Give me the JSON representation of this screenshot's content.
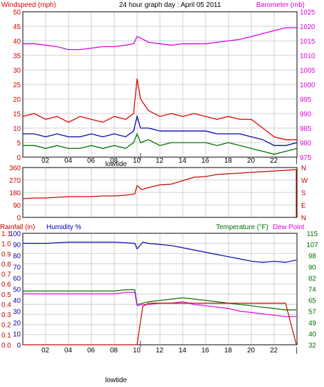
{
  "colors": {
    "wind": "#e00000",
    "wind_avg": "#0000b0",
    "wind_low": "#007000",
    "baro": "#dd00dd",
    "humidity": "#0000b0",
    "temperature": "#007000",
    "dewpoint": "#dd00dd",
    "rain": "#cc0000",
    "frame": "#000000",
    "grid": "#cfcfcf",
    "tide_marker": "#444444"
  },
  "x_ticks": [
    "02",
    "04",
    "06",
    "08",
    "10",
    "12",
    "14",
    "16",
    "18",
    "20",
    "22",
    "|"
  ],
  "tide_labels": [
    "lowtide",
    "lowtide"
  ],
  "chart_data": [
    {
      "type": "line",
      "title": "24 hour graph day : April 05 2011",
      "left_axis_label": "Windspeed (mph)",
      "right_axis_label": "Barometer (mb)",
      "left_ticks": [
        "0",
        "5",
        "10",
        "15",
        "20",
        "25",
        "30",
        "35",
        "40",
        "45",
        "50"
      ],
      "right_ticks": [
        "975",
        "980",
        "985",
        "990",
        "995",
        "1000",
        "1005",
        "1010",
        "1015",
        "1020",
        "1025"
      ],
      "ylim_left": [
        0,
        50
      ],
      "ylim_right": [
        975,
        1025
      ],
      "x_hours": [
        0,
        1,
        2,
        3,
        4,
        5,
        6,
        7,
        8,
        9,
        9.7,
        10,
        10.3,
        11,
        12,
        13,
        14,
        15,
        16,
        17,
        18,
        19,
        20,
        21,
        22,
        23,
        24
      ],
      "series": [
        {
          "key": "gust",
          "color_key": "wind",
          "axis": "left",
          "values": [
            14,
            15,
            13,
            14,
            12,
            14,
            13,
            12,
            14,
            13,
            15,
            27,
            20,
            16,
            14,
            15,
            14,
            15,
            14,
            13,
            14,
            13,
            13,
            10,
            7,
            6,
            6
          ]
        },
        {
          "key": "avg",
          "color_key": "wind_avg",
          "axis": "left",
          "values": [
            8,
            8,
            7,
            8,
            7,
            7,
            8,
            7,
            8,
            7,
            9,
            14,
            10,
            10,
            9,
            9,
            9,
            9,
            9,
            8,
            8,
            8,
            7,
            6,
            4,
            4,
            5
          ]
        },
        {
          "key": "low",
          "color_key": "wind_low",
          "axis": "left",
          "values": [
            4,
            4,
            3,
            4,
            3,
            3,
            4,
            3,
            4,
            3,
            5,
            8,
            5,
            6,
            4,
            5,
            5,
            5,
            5,
            4,
            5,
            4,
            3,
            2,
            1,
            2,
            3
          ]
        },
        {
          "key": "baro",
          "color_key": "baro",
          "axis": "right",
          "values": [
            1014,
            1014,
            1013.5,
            1013,
            1012,
            1012,
            1012.5,
            1013,
            1013,
            1013.5,
            1014,
            1016.5,
            1016,
            1014.5,
            1014,
            1013.5,
            1014,
            1014,
            1014,
            1014.5,
            1015,
            1015.5,
            1016.5,
            1017.5,
            1018.5,
            1019.5,
            1019.5
          ]
        }
      ]
    },
    {
      "type": "line",
      "left_ticks": [
        "0",
        "90",
        "180",
        "270",
        "360"
      ],
      "right_labels": [
        "N",
        "W",
        "S",
        "E",
        "N"
      ],
      "ylim": [
        0,
        360
      ],
      "x_hours": [
        0,
        1,
        2,
        3,
        4,
        5,
        6,
        7,
        8,
        9,
        9.8,
        10,
        10.4,
        11,
        12,
        13,
        14,
        15,
        16,
        17,
        18,
        19,
        20,
        21,
        22,
        23,
        23.9,
        24,
        24.01
      ],
      "series": [
        {
          "key": "direction",
          "color_key": "rain",
          "values": [
            135,
            140,
            140,
            145,
            150,
            150,
            150,
            155,
            155,
            160,
            170,
            230,
            200,
            215,
            235,
            240,
            265,
            290,
            295,
            310,
            315,
            320,
            325,
            330,
            335,
            340,
            345,
            345,
            0
          ]
        }
      ]
    },
    {
      "type": "line",
      "left_axis_label": "Rainfall (in)",
      "left_axis_label2": "Humidity %",
      "right_axis_label": "Temperature (°F)",
      "right_axis_label2": "Dew Point",
      "rain_ticks": [
        "0.0",
        "0.1",
        "0.2",
        "0.3",
        "0.4",
        "0.5",
        "0.6",
        "0.7",
        "0.8",
        "0.9",
        "1.0",
        "1.1"
      ],
      "humidity_ticks": [
        "0",
        "10",
        "20",
        "30",
        "40",
        "50",
        "60",
        "70",
        "80",
        "90",
        "100"
      ],
      "temp_ticks": [
        "32",
        "40",
        "49",
        "57",
        "65",
        "74",
        "82",
        "90",
        "98",
        "107",
        "115"
      ],
      "ylim_rain": [
        0,
        1.1
      ],
      "ylim_humidity": [
        0,
        100
      ],
      "ylim_temp": [
        32,
        115
      ],
      "x_hours": [
        0,
        1,
        2,
        3,
        4,
        5,
        6,
        7,
        8,
        9,
        9.8,
        10,
        10.5,
        11,
        12,
        13,
        14,
        15,
        16,
        17,
        18,
        19,
        20,
        21,
        22,
        23,
        24
      ],
      "series": [
        {
          "key": "humidity",
          "color_key": "humidity",
          "axis": "humidity",
          "values": [
            91,
            91,
            91,
            91.5,
            92,
            92,
            92,
            92,
            92,
            91.5,
            91,
            86,
            92,
            91,
            90,
            89,
            87,
            85,
            83,
            81,
            79,
            77,
            75,
            74,
            75,
            74,
            76
          ]
        },
        {
          "key": "temperature",
          "color_key": "temperature",
          "axis": "temp",
          "values": [
            72,
            72,
            72,
            72,
            72,
            72,
            72,
            72,
            72,
            73,
            73,
            62,
            63,
            64,
            65,
            66,
            67,
            66,
            65,
            64,
            63,
            62,
            61,
            60,
            59,
            58,
            58
          ]
        },
        {
          "key": "dewpoint",
          "color_key": "dewpoint",
          "axis": "temp",
          "values": [
            70,
            70,
            70,
            70,
            70,
            70,
            70,
            70,
            70,
            71,
            71,
            61,
            62,
            62,
            63,
            63,
            64,
            62,
            61,
            60,
            59,
            57,
            56,
            55,
            54,
            53,
            53
          ]
        },
        {
          "key": "rain",
          "color_key": "rain",
          "axis": "rain",
          "values": [
            0,
            0,
            0,
            0,
            0,
            0,
            0,
            0,
            0,
            0,
            0,
            0,
            0.38,
            0.41,
            0.41,
            0.41,
            0.41,
            0.41,
            0.41,
            0.41,
            0.41,
            0.41,
            0.41,
            0.41,
            0.41,
            0.41,
            0
          ]
        }
      ]
    }
  ]
}
